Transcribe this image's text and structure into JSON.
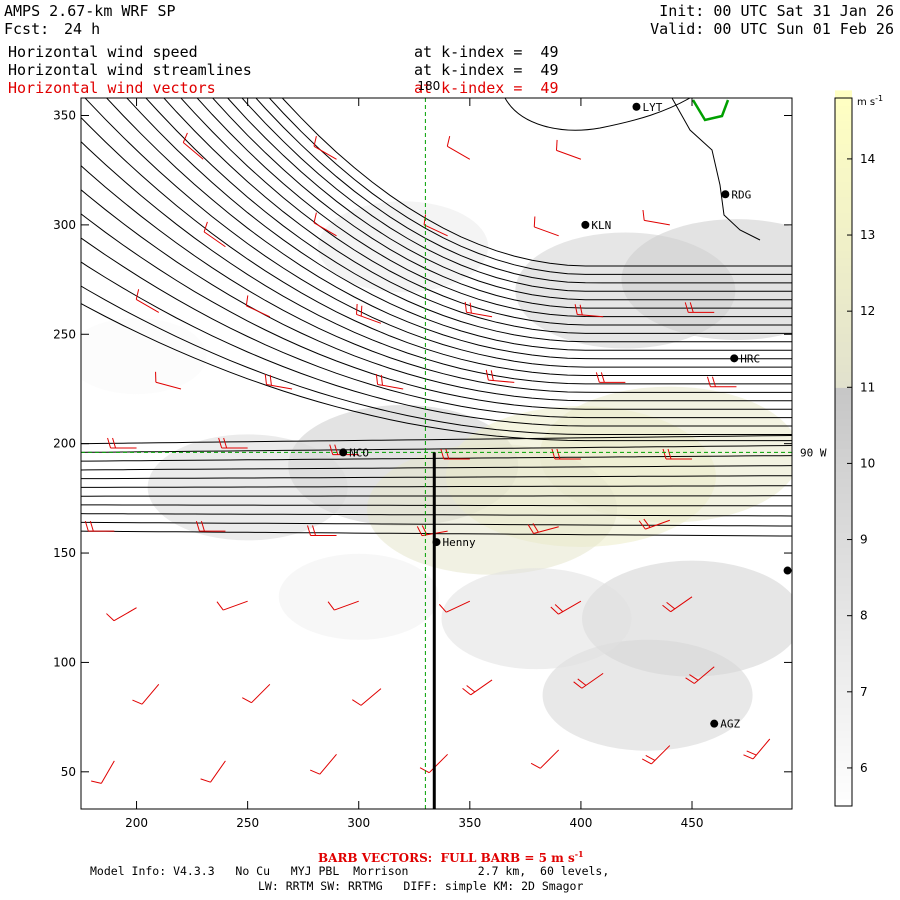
{
  "header": {
    "model": "AMPS 2.67-km WRF SP",
    "forecast_label": "Fcst:",
    "forecast_value": "24 h",
    "init": "Init: 00 UTC Sat 31 Jan 26",
    "valid": "Valid: 00 UTC Sun 01 Feb 26",
    "fields": [
      {
        "name": "Horizontal wind speed",
        "level": "at k-index =  49"
      },
      {
        "name": "Horizontal wind streamlines",
        "level": "at k-index =  49"
      },
      {
        "name": "Horizontal wind vectors",
        "level": "at k-index =  49"
      }
    ]
  },
  "footer": {
    "barb_note": "BARB VECTORS:  FULL BARB = 5 m s",
    "barb_exp": "-1",
    "line1": "Model Info: V4.3.3   No Cu   MYJ PBL  Morrison          2.7 km,  60 levels,",
    "line2": "LW: RRTM SW: RRTMG   DIFF: simple KM: 2D Smagor"
  },
  "chart_data": {
    "type": "heatmap",
    "title": "Horizontal wind speed / streamlines / vectors at k-index 49",
    "xlim": [
      175,
      495
    ],
    "ylim": [
      33,
      358
    ],
    "xticks": [
      200,
      250,
      300,
      350,
      400,
      450
    ],
    "yticks": [
      50,
      100,
      150,
      200,
      250,
      300,
      350
    ],
    "meridian_180": {
      "x": 330,
      "label": "180"
    },
    "meridian_90W": {
      "y": 196,
      "label": "90 W"
    },
    "cross_section": {
      "x": 334,
      "y_from": 33,
      "y_to": 196
    },
    "colorbar": {
      "unit": "m s",
      "unit_exp": "-1",
      "ticks": [
        6,
        7,
        8,
        9,
        10,
        11,
        12,
        13,
        14
      ],
      "range": [
        5.5,
        14.8
      ]
    },
    "stations": [
      {
        "name": "LYT",
        "x": 425,
        "y": 354
      },
      {
        "name": "RDG",
        "x": 465,
        "y": 314
      },
      {
        "name": "KLN",
        "x": 402,
        "y": 300
      },
      {
        "name": "HRC",
        "x": 469,
        "y": 239
      },
      {
        "name": "NCO",
        "x": 293,
        "y": 196
      },
      {
        "name": "Henny",
        "x": 335,
        "y": 155
      },
      {
        "name": "AGZ",
        "x": 460,
        "y": 72
      },
      {
        "name": "",
        "x": 493,
        "y": 142
      }
    ],
    "wind_speed_field": [
      {
        "x": 320,
        "y": 190,
        "speed": 10.5
      },
      {
        "x": 400,
        "y": 185,
        "speed": 12.5
      },
      {
        "x": 440,
        "y": 195,
        "speed": 12.0
      },
      {
        "x": 360,
        "y": 170,
        "speed": 11.5
      },
      {
        "x": 250,
        "y": 180,
        "speed": 9.0
      },
      {
        "x": 450,
        "y": 120,
        "speed": 10.0
      },
      {
        "x": 430,
        "y": 85,
        "speed": 9.5
      },
      {
        "x": 420,
        "y": 270,
        "speed": 10.0
      },
      {
        "x": 470,
        "y": 275,
        "speed": 10.5
      },
      {
        "x": 320,
        "y": 290,
        "speed": 7.5
      },
      {
        "x": 200,
        "y": 240,
        "speed": 6.0
      },
      {
        "x": 380,
        "y": 120,
        "speed": 8.5
      },
      {
        "x": 300,
        "y": 130,
        "speed": 7.0
      }
    ],
    "barbs": [
      {
        "x": 200,
        "y": 198,
        "dir": 270,
        "speed": 10
      },
      {
        "x": 250,
        "y": 198,
        "dir": 270,
        "speed": 10
      },
      {
        "x": 300,
        "y": 195,
        "dir": 270,
        "speed": 10
      },
      {
        "x": 350,
        "y": 193,
        "dir": 270,
        "speed": 10
      },
      {
        "x": 400,
        "y": 193,
        "dir": 270,
        "speed": 10
      },
      {
        "x": 450,
        "y": 193,
        "dir": 270,
        "speed": 10
      },
      {
        "x": 190,
        "y": 160,
        "dir": 270,
        "speed": 10
      },
      {
        "x": 240,
        "y": 160,
        "dir": 270,
        "speed": 10
      },
      {
        "x": 290,
        "y": 158,
        "dir": 270,
        "speed": 10
      },
      {
        "x": 340,
        "y": 160,
        "dir": 260,
        "speed": 10
      },
      {
        "x": 390,
        "y": 162,
        "dir": 255,
        "speed": 10
      },
      {
        "x": 440,
        "y": 165,
        "dir": 250,
        "speed": 10
      },
      {
        "x": 220,
        "y": 225,
        "dir": 285,
        "speed": 5
      },
      {
        "x": 270,
        "y": 225,
        "dir": 280,
        "speed": 10
      },
      {
        "x": 320,
        "y": 225,
        "dir": 280,
        "speed": 10
      },
      {
        "x": 370,
        "y": 228,
        "dir": 275,
        "speed": 10
      },
      {
        "x": 420,
        "y": 228,
        "dir": 270,
        "speed": 10
      },
      {
        "x": 470,
        "y": 226,
        "dir": 270,
        "speed": 10
      },
      {
        "x": 210,
        "y": 260,
        "dir": 300,
        "speed": 5
      },
      {
        "x": 260,
        "y": 258,
        "dir": 295,
        "speed": 5
      },
      {
        "x": 310,
        "y": 255,
        "dir": 290,
        "speed": 10
      },
      {
        "x": 360,
        "y": 258,
        "dir": 280,
        "speed": 10
      },
      {
        "x": 410,
        "y": 258,
        "dir": 275,
        "speed": 10
      },
      {
        "x": 460,
        "y": 260,
        "dir": 270,
        "speed": 10
      },
      {
        "x": 240,
        "y": 290,
        "dir": 305,
        "speed": 5
      },
      {
        "x": 290,
        "y": 295,
        "dir": 300,
        "speed": 5
      },
      {
        "x": 340,
        "y": 295,
        "dir": 295,
        "speed": 5
      },
      {
        "x": 390,
        "y": 295,
        "dir": 290,
        "speed": 5
      },
      {
        "x": 440,
        "y": 300,
        "dir": 280,
        "speed": 5
      },
      {
        "x": 230,
        "y": 330,
        "dir": 310,
        "speed": 5
      },
      {
        "x": 290,
        "y": 330,
        "dir": 300,
        "speed": 5
      },
      {
        "x": 350,
        "y": 330,
        "dir": 300,
        "speed": 5
      },
      {
        "x": 400,
        "y": 330,
        "dir": 290,
        "speed": 5
      },
      {
        "x": 200,
        "y": 125,
        "dir": 240,
        "speed": 5
      },
      {
        "x": 250,
        "y": 128,
        "dir": 250,
        "speed": 5
      },
      {
        "x": 300,
        "y": 128,
        "dir": 250,
        "speed": 5
      },
      {
        "x": 350,
        "y": 128,
        "dir": 245,
        "speed": 5
      },
      {
        "x": 400,
        "y": 128,
        "dir": 240,
        "speed": 10
      },
      {
        "x": 450,
        "y": 130,
        "dir": 235,
        "speed": 10
      },
      {
        "x": 210,
        "y": 90,
        "dir": 220,
        "speed": 5
      },
      {
        "x": 260,
        "y": 90,
        "dir": 225,
        "speed": 5
      },
      {
        "x": 310,
        "y": 88,
        "dir": 230,
        "speed": 5
      },
      {
        "x": 360,
        "y": 92,
        "dir": 235,
        "speed": 10
      },
      {
        "x": 410,
        "y": 95,
        "dir": 235,
        "speed": 10
      },
      {
        "x": 460,
        "y": 98,
        "dir": 230,
        "speed": 10
      },
      {
        "x": 190,
        "y": 55,
        "dir": 210,
        "speed": 5
      },
      {
        "x": 240,
        "y": 55,
        "dir": 215,
        "speed": 5
      },
      {
        "x": 290,
        "y": 58,
        "dir": 220,
        "speed": 5
      },
      {
        "x": 340,
        "y": 58,
        "dir": 225,
        "speed": 5
      },
      {
        "x": 390,
        "y": 60,
        "dir": 225,
        "speed": 5
      },
      {
        "x": 440,
        "y": 62,
        "dir": 225,
        "speed": 10
      },
      {
        "x": 485,
        "y": 65,
        "dir": 220,
        "speed": 10
      }
    ]
  }
}
